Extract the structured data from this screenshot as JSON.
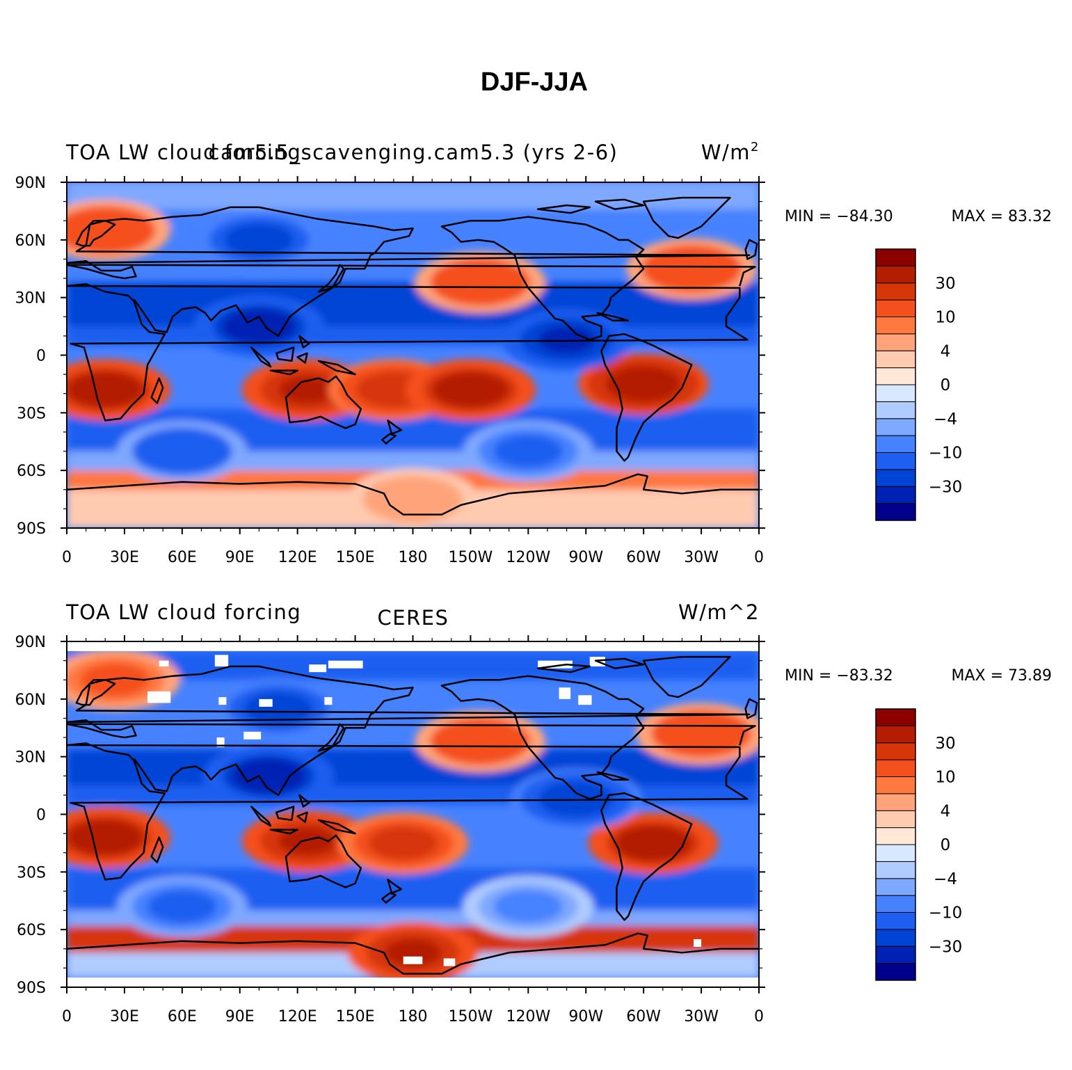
{
  "title": "DJF-JJA",
  "color_scale": {
    "colors": [
      "#00008c",
      "#0022b4",
      "#0044d6",
      "#1e5ef0",
      "#4682ff",
      "#7fa8ff",
      "#b0ccff",
      "#d8e8ff",
      "#ffe8d8",
      "#ffcbb0",
      "#ffa47a",
      "#ff7840",
      "#f4501e",
      "#d63608",
      "#b41e00",
      "#8c0000"
    ],
    "labels": [
      "-30",
      "-10",
      "-4",
      "0",
      "4",
      "10",
      "30"
    ],
    "label_display": [
      "−30",
      "−10",
      "−4",
      "0",
      "4",
      "10",
      "30"
    ]
  },
  "axes": {
    "lon_labels": [
      "0",
      "30E",
      "60E",
      "90E",
      "120E",
      "150E",
      "180",
      "150W",
      "120W",
      "90W",
      "60W",
      "30W",
      "0"
    ],
    "lat_labels": [
      "90N",
      "60N",
      "30N",
      "0",
      "30S",
      "60S",
      "90S"
    ]
  },
  "panels": [
    {
      "left_label": "TOA LW cloud forcing",
      "center_label": "cam5.5_scavenging.cam5.3 (yrs 2-6)",
      "right_label_main": "W/m",
      "right_label_sup": "2",
      "min_text": "MIN = −84.30",
      "max_text": "MAX =  83.32"
    },
    {
      "left_label": "TOA LW cloud forcing",
      "center_label": "CERES",
      "right_label_main": "W/m^2",
      "right_label_sup": "",
      "min_text": "MIN = −83.32",
      "max_text": "MAX =  73.89"
    }
  ],
  "chart_data": [
    {
      "type": "heatmap",
      "title": "DJF-JJA",
      "subtitle": "cam5.5_scavenging.cam5.3 (yrs 2-6)",
      "variable": "TOA LW cloud forcing",
      "units": "W/m2",
      "min": -84.3,
      "max": 83.32,
      "xlabel": "",
      "ylabel": "",
      "xlim": [
        0,
        360
      ],
      "ylim": [
        -90,
        90
      ],
      "x_ticks": [
        "0",
        "30E",
        "60E",
        "90E",
        "120E",
        "150E",
        "180",
        "150W",
        "120W",
        "90W",
        "60W",
        "30W",
        "0"
      ],
      "y_ticks": [
        "90N",
        "60N",
        "30N",
        "0",
        "30S",
        "60S",
        "90S"
      ],
      "levels": [
        -30,
        -10,
        -4,
        0,
        4,
        10,
        30
      ],
      "features": [
        {
          "lon": 20,
          "lat": -18,
          "value": 40
        },
        {
          "lon": 125,
          "lat": -18,
          "value": 35
        },
        {
          "lon": 170,
          "lat": -18,
          "value": 30
        },
        {
          "lon": 210,
          "lat": -18,
          "value": 38
        },
        {
          "lon": 300,
          "lat": -15,
          "value": 45
        },
        {
          "lon": 215,
          "lat": 38,
          "value": 22
        },
        {
          "lon": 325,
          "lat": 45,
          "value": 22
        },
        {
          "lon": 20,
          "lat": 65,
          "value": 18
        },
        {
          "lon": 100,
          "lat": 15,
          "value": -40
        },
        {
          "lon": 100,
          "lat": 60,
          "value": -25
        },
        {
          "lon": 260,
          "lat": 8,
          "value": -35
        },
        {
          "lon": 240,
          "lat": -50,
          "value": -15
        },
        {
          "lon": 60,
          "lat": -50,
          "value": -18
        },
        {
          "lon": 180,
          "lat": -75,
          "value": 8
        }
      ]
    },
    {
      "type": "heatmap",
      "title": "DJF-JJA",
      "subtitle": "CERES",
      "variable": "TOA LW cloud forcing",
      "units": "W/m^2",
      "min": -83.32,
      "max": 73.89,
      "xlabel": "",
      "ylabel": "",
      "xlim": [
        0,
        360
      ],
      "ylim": [
        -90,
        90
      ],
      "x_ticks": [
        "0",
        "30E",
        "60E",
        "90E",
        "120E",
        "150E",
        "180",
        "150W",
        "120W",
        "90W",
        "60W",
        "30W",
        "0"
      ],
      "y_ticks": [
        "90N",
        "60N",
        "30N",
        "0",
        "30S",
        "60S",
        "90S"
      ],
      "levels": [
        -30,
        -10,
        -4,
        0,
        4,
        10,
        30
      ],
      "features": [
        {
          "lon": 20,
          "lat": -12,
          "value": 40
        },
        {
          "lon": 125,
          "lat": -14,
          "value": 35
        },
        {
          "lon": 175,
          "lat": -15,
          "value": 25
        },
        {
          "lon": 305,
          "lat": -15,
          "value": 38
        },
        {
          "lon": 215,
          "lat": 38,
          "value": 20
        },
        {
          "lon": 330,
          "lat": 42,
          "value": 20
        },
        {
          "lon": 25,
          "lat": 70,
          "value": 15
        },
        {
          "lon": 105,
          "lat": 20,
          "value": -40
        },
        {
          "lon": 110,
          "lat": 55,
          "value": -25
        },
        {
          "lon": 265,
          "lat": 8,
          "value": -30
        },
        {
          "lon": 60,
          "lat": -48,
          "value": -15
        },
        {
          "lon": 240,
          "lat": -48,
          "value": -10
        },
        {
          "lon": 180,
          "lat": -72,
          "value": 35
        }
      ]
    }
  ]
}
